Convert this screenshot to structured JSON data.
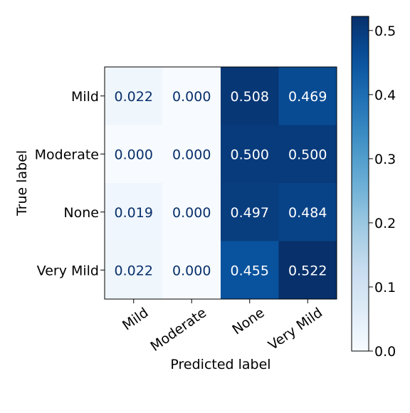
{
  "chart_data": {
    "type": "heatmap",
    "xlabel": "Predicted label",
    "ylabel": "True label",
    "x_categories": [
      "Mild",
      "Moderate",
      "None",
      "Very Mild"
    ],
    "y_categories": [
      "Mild",
      "Moderate",
      "None",
      "Very Mild"
    ],
    "values": [
      [
        0.022,
        0.0,
        0.508,
        0.469
      ],
      [
        0.0,
        0.0,
        0.5,
        0.5
      ],
      [
        0.019,
        0.0,
        0.497,
        0.484
      ],
      [
        0.022,
        0.0,
        0.455,
        0.522
      ]
    ],
    "cell_labels": [
      [
        "0.022",
        "0.000",
        "0.508",
        "0.469"
      ],
      [
        "0.000",
        "0.000",
        "0.500",
        "0.500"
      ],
      [
        "0.019",
        "0.000",
        "0.497",
        "0.484"
      ],
      [
        "0.022",
        "0.000",
        "0.455",
        "0.522"
      ]
    ],
    "colormap": "Blues",
    "colorbar": {
      "range": [
        0.0,
        0.522
      ],
      "ticks": [
        0.0,
        0.1,
        0.2,
        0.3,
        0.4,
        0.5
      ],
      "tick_labels": [
        "0.0",
        "0.1",
        "0.2",
        "0.3",
        "0.4",
        "0.5"
      ]
    },
    "grid": false,
    "colors": {
      "low": "#f7fbff",
      "high": "#08306b",
      "text_dark": "#08306b",
      "text_light": "#ffffff"
    }
  }
}
